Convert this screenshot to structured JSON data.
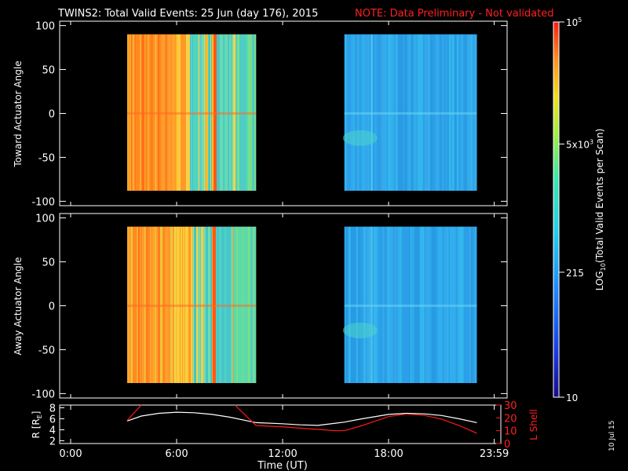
{
  "title": "TWINS2: Total Valid Events: 25 Jun (day 176), 2015",
  "note": "NOTE: Data Preliminary - Not validated",
  "colors": {
    "background": "#000000",
    "text": "#ffffff",
    "note": "#ff2020",
    "r_curve": "#ffffff",
    "l_curve": "#ff1a1a"
  },
  "date_stamp": "10 Jul 15",
  "chart_data": [
    {
      "type": "heatmap",
      "name": "toward",
      "ylabel": "Toward Actuator Angle",
      "ylim": [
        -105,
        105
      ],
      "yticks": [
        100,
        50,
        0,
        -50,
        -100
      ],
      "xlim_hours": [
        0,
        24
      ],
      "data_intervals": [
        {
          "start_h": 3.2,
          "end_h": 10.5,
          "level": "high"
        },
        {
          "start_h": 15.5,
          "end_h": 23.0,
          "level": "low"
        }
      ],
      "angle_range": [
        -88,
        90
      ]
    },
    {
      "type": "heatmap",
      "name": "away",
      "ylabel": "Away Actuator Angle",
      "ylim": [
        -105,
        105
      ],
      "yticks": [
        100,
        50,
        0,
        -50,
        -100
      ],
      "xlim_hours": [
        0,
        24
      ],
      "data_intervals": [
        {
          "start_h": 3.2,
          "end_h": 10.5,
          "level": "high"
        },
        {
          "start_h": 15.5,
          "end_h": 23.0,
          "level": "low"
        }
      ],
      "angle_range": [
        -88,
        90
      ]
    },
    {
      "type": "line",
      "name": "ephemeris",
      "ylabel_left": "R [R",
      "ylabel_left_sub": "E",
      "ylabel_left_end": "]",
      "ylabel_right": "L Shell",
      "left_ylim": [
        1.5,
        8.5
      ],
      "left_yticks": [
        2,
        4,
        6,
        8
      ],
      "right_ylim": [
        0,
        30
      ],
      "right_yticks": [
        0,
        10,
        20,
        30
      ],
      "xlabel": "Time (UT)",
      "xticks": [
        {
          "h": 0,
          "label": "0:00"
        },
        {
          "h": 6,
          "label": "6:00"
        },
        {
          "h": 12,
          "label": "12:00"
        },
        {
          "h": 18,
          "label": "18:00"
        },
        {
          "h": 23.98,
          "label": "23:59"
        }
      ],
      "series": [
        {
          "name": "R",
          "x": [
            3.2,
            4,
            5,
            6,
            7,
            8,
            9,
            10.5,
            12,
            13,
            14,
            15,
            15.5,
            16.5,
            18,
            19,
            20,
            21,
            22,
            23
          ],
          "y": [
            5.6,
            6.5,
            7.0,
            7.2,
            7.1,
            6.8,
            6.3,
            5.3,
            5.1,
            4.9,
            4.8,
            5.2,
            5.4,
            6.0,
            6.8,
            7.0,
            6.9,
            6.6,
            6.0,
            5.3
          ]
        },
        {
          "name": "L Shell",
          "segments": [
            {
              "x": [
                3.2,
                4.0
              ],
              "y": [
                18,
                30
              ]
            },
            {
              "x": [
                9.3,
                10.5
              ],
              "y": [
                30,
                14
              ]
            },
            {
              "x": [
                10.5,
                12,
                13,
                14,
                15,
                15.5,
                16.5,
                18,
                19,
                20,
                21,
                22,
                23
              ],
              "y": [
                14,
                13,
                12,
                11,
                10,
                10,
                14,
                21,
                23,
                22,
                19,
                14,
                8
              ]
            }
          ]
        }
      ]
    }
  ],
  "colorbar": {
    "label": "LOG10(Total Valid Events per Scan)",
    "label_main": "LOG",
    "label_sub": "10",
    "label_rest": "(Total Valid Events per Scan)",
    "min": 10,
    "max": 100000,
    "ticks": [
      {
        "value": 100000,
        "label": "10",
        "sup": "5"
      },
      {
        "value": 5000,
        "label": "5x10",
        "sup": "3"
      },
      {
        "value": 215,
        "label": "215",
        "sup": ""
      },
      {
        "value": 10,
        "label": "10",
        "sup": ""
      }
    ]
  }
}
